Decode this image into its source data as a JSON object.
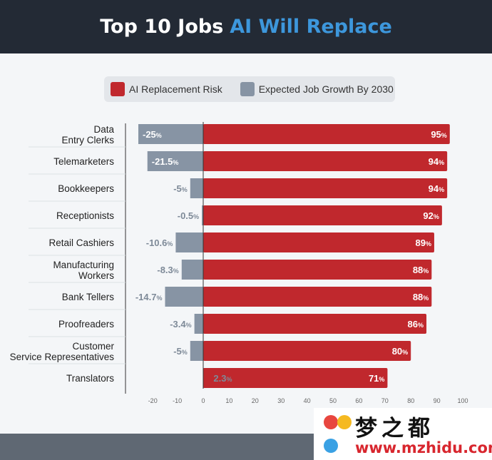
{
  "header": {
    "title_plain": "Top 10 Jobs",
    "title_accent": "AI Will Replace"
  },
  "colors": {
    "risk": "#c0282d",
    "growth": "#8794a4",
    "header_bg": "#232a35",
    "accent": "#3d97dc"
  },
  "watermark": {
    "brand": "梦之都",
    "url": "www.mzhidu.com"
  },
  "chart_data": {
    "type": "bar",
    "orientation": "horizontal",
    "title": "Top 10 Jobs AI Will Replace",
    "categories": [
      "Data Entry Clerks",
      "Telemarketers",
      "Bookkeepers",
      "Receptionists",
      "Retail Cashiers",
      "Manufacturing Workers",
      "Bank Tellers",
      "Proofreaders",
      "Customer Service Representatives",
      "Translators"
    ],
    "series": [
      {
        "name": "AI Replacement Risk",
        "values": [
          95,
          94,
          94,
          92,
          89,
          88,
          88,
          86,
          80,
          71
        ],
        "labels": [
          "95",
          "94",
          "94",
          "92",
          "89",
          "88",
          "88",
          "86",
          "80",
          "71"
        ]
      },
      {
        "name": "Expected Job Growth By 2030",
        "values": [
          -25,
          -21.5,
          -5,
          -0.5,
          -10.6,
          -8.3,
          -14.7,
          -3.4,
          -5,
          2.3
        ],
        "labels": [
          "-25",
          "-21.5",
          "-5",
          "-0.5",
          "-10.6",
          "-8.3",
          "-14.7",
          "-3.4",
          "-5",
          "2.3"
        ]
      }
    ],
    "unit": "%",
    "xlim": [
      -20,
      100
    ],
    "xticks": [
      -20,
      -10,
      0,
      10,
      20,
      30,
      40,
      50,
      60,
      70,
      80,
      90,
      100
    ],
    "legend": "top",
    "grid": false
  }
}
